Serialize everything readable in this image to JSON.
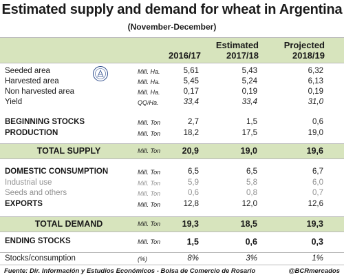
{
  "title": "Estimated supply and demand for wheat in Argentina",
  "subtitle": "(November-December)",
  "columns": [
    {
      "line1": "",
      "line2": "2016/17"
    },
    {
      "line1": "Estimated",
      "line2": "2017/18"
    },
    {
      "line1": "Projected",
      "line2": "2018/19"
    }
  ],
  "rows": [
    {
      "label": "Seeded area",
      "unit": "Mill. Ha.",
      "values": [
        "5,61",
        "5,43",
        "6,32"
      ]
    },
    {
      "label": "Harvested area",
      "unit": "Mill. Ha.",
      "values": [
        "5,45",
        "5,24",
        "6,13"
      ]
    },
    {
      "label": "Non harvested area",
      "unit": "Mill. Ha.",
      "values": [
        "0,17",
        "0,19",
        "0,19"
      ]
    },
    {
      "label": "Yield",
      "unit": "QQ/Ha.",
      "values": [
        "33,4",
        "33,4",
        "31,0"
      ]
    },
    {
      "label": "BEGINNING STOCKS",
      "unit": "Mill. Ton",
      "values": [
        "2,7",
        "1,5",
        "0,6"
      ]
    },
    {
      "label": "PRODUCTION",
      "unit": "Mill. Ton",
      "values": [
        "18,2",
        "17,5",
        "19,0"
      ]
    },
    {
      "label": "TOTAL SUPPLY",
      "unit": "Mill. Ton",
      "values": [
        "20,9",
        "19,0",
        "19,6"
      ]
    },
    {
      "label": "DOMESTIC CONSUMPTION",
      "unit": "Mill. Ton",
      "values": [
        "6,5",
        "6,5",
        "6,7"
      ]
    },
    {
      "label": "Industrial use",
      "unit": "Mill. Ton",
      "values": [
        "5,9",
        "5,8",
        "6,0"
      ]
    },
    {
      "label": "Seeds and others",
      "unit": "Mill. Ton",
      "values": [
        "0,6",
        "0,8",
        "0,7"
      ]
    },
    {
      "label": "EXPORTS",
      "unit": "Mill. Ton",
      "values": [
        "12,8",
        "12,0",
        "12,6"
      ]
    },
    {
      "label": "TOTAL DEMAND",
      "unit": "Mill. Ton",
      "values": [
        "19,3",
        "18,5",
        "19,3"
      ]
    },
    {
      "label": "ENDING STOCKS",
      "unit": "Mill. Ton",
      "values": [
        "1,5",
        "0,6",
        "0,3"
      ]
    },
    {
      "label": "Stocks/consumption",
      "unit": "(%)",
      "values": [
        "8%",
        "3%",
        "1%"
      ]
    }
  ],
  "footer": "Fuente: Dir. Información y Estudios Económicos - Bolsa de Comercio de Rosario",
  "handle": "@BCRmercados",
  "colors": {
    "band": "#d7e4bd",
    "grey_text": "#909090"
  },
  "icons": {
    "seal": "bcr-seal-icon"
  }
}
